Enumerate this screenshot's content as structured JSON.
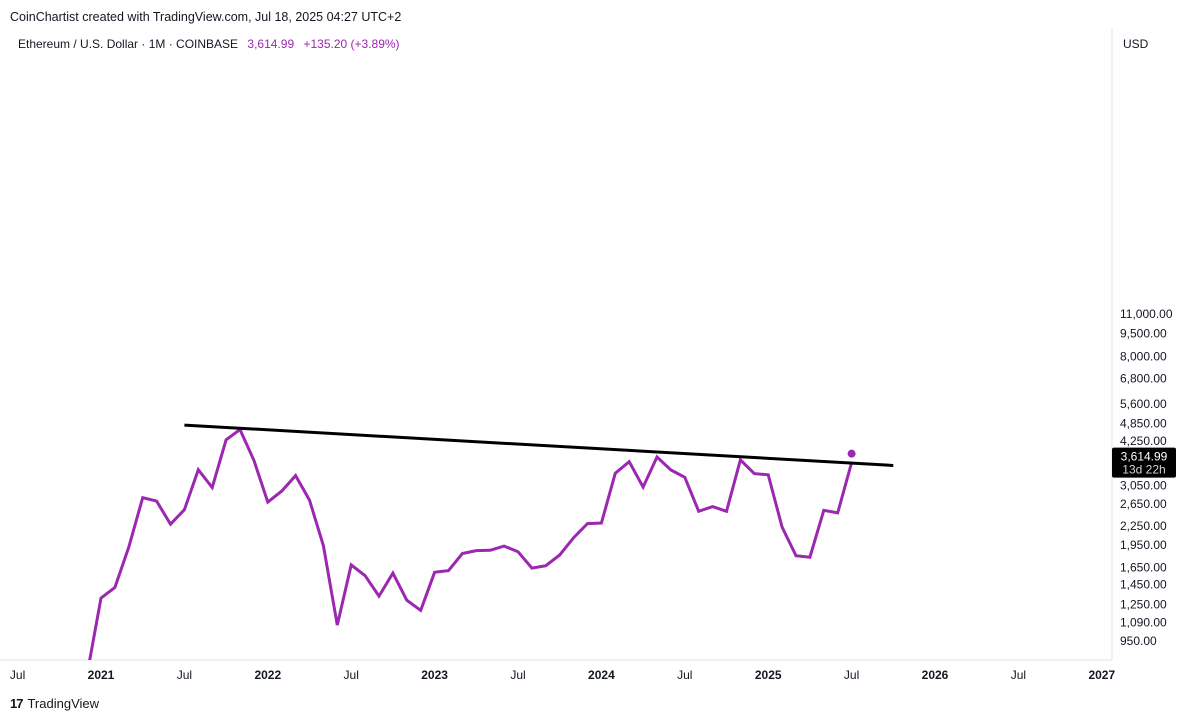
{
  "header": {
    "credit": "CoinChartist created with TradingView.com, Jul 18, 2025 04:27 UTC+2",
    "symbol": "Ethereum / U.S. Dollar · 1M · COINBASE",
    "price": "3,614.99",
    "change": "+135.20 (+3.89%)"
  },
  "price_tag": {
    "price": "3,614.99",
    "countdown": "13d 22h"
  },
  "footer": {
    "brand": "TradingView",
    "logo": "17"
  },
  "colors": {
    "series": "#9c27b0",
    "trendline": "#000000",
    "tag_bg": "#000000"
  },
  "chart_data": {
    "type": "line",
    "y_scale": "log",
    "currency_label": "USD",
    "ylim": [
      880,
      13000
    ],
    "y_ticks": [
      {
        "value": 950,
        "label": "950.00"
      },
      {
        "value": 1090,
        "label": "1,090.00"
      },
      {
        "value": 1250,
        "label": "1,250.00"
      },
      {
        "value": 1450,
        "label": "1,450.00"
      },
      {
        "value": 1650,
        "label": "1,650.00"
      },
      {
        "value": 1950,
        "label": "1,950.00"
      },
      {
        "value": 2250,
        "label": "2,250.00"
      },
      {
        "value": 2650,
        "label": "2,650.00"
      },
      {
        "value": 3050,
        "label": "3,050.00"
      },
      {
        "value": 4250,
        "label": "4,250.00"
      },
      {
        "value": 4850,
        "label": "4,850.00"
      },
      {
        "value": 5600,
        "label": "5,600.00"
      },
      {
        "value": 6800,
        "label": "6,800.00"
      },
      {
        "value": 8000,
        "label": "8,000.00"
      },
      {
        "value": 9500,
        "label": "9,500.00"
      },
      {
        "value": 11000,
        "label": "11,000.00"
      }
    ],
    "x_ticks": [
      {
        "date": "2020-07",
        "label": "Jul",
        "year": false
      },
      {
        "date": "2021-01",
        "label": "2021",
        "year": true
      },
      {
        "date": "2021-07",
        "label": "Jul",
        "year": false
      },
      {
        "date": "2022-01",
        "label": "2022",
        "year": true
      },
      {
        "date": "2022-07",
        "label": "Jul",
        "year": false
      },
      {
        "date": "2023-01",
        "label": "2023",
        "year": true
      },
      {
        "date": "2023-07",
        "label": "Jul",
        "year": false
      },
      {
        "date": "2024-01",
        "label": "2024",
        "year": true
      },
      {
        "date": "2024-07",
        "label": "Jul",
        "year": false
      },
      {
        "date": "2025-01",
        "label": "2025",
        "year": true
      },
      {
        "date": "2025-07",
        "label": "Jul",
        "year": false
      },
      {
        "date": "2026-01",
        "label": "2026",
        "year": true
      },
      {
        "date": "2026-07",
        "label": "Jul",
        "year": false
      },
      {
        "date": "2027-01",
        "label": "2027",
        "year": true
      }
    ],
    "series": [
      {
        "name": "Ethereum / U.S. Dollar",
        "x": [
          "2020-12",
          "2021-01",
          "2021-02",
          "2021-03",
          "2021-04",
          "2021-05",
          "2021-06",
          "2021-07",
          "2021-08",
          "2021-09",
          "2021-10",
          "2021-11",
          "2021-12",
          "2022-01",
          "2022-02",
          "2022-03",
          "2022-04",
          "2022-05",
          "2022-06",
          "2022-07",
          "2022-08",
          "2022-09",
          "2022-10",
          "2022-11",
          "2022-12",
          "2023-01",
          "2023-02",
          "2023-03",
          "2023-04",
          "2023-05",
          "2023-06",
          "2023-07",
          "2023-08",
          "2023-09",
          "2023-10",
          "2023-11",
          "2023-12",
          "2024-01",
          "2024-02",
          "2024-03",
          "2024-04",
          "2024-05",
          "2024-06",
          "2024-07",
          "2024-08",
          "2024-09",
          "2024-10",
          "2024-11",
          "2024-12",
          "2025-01",
          "2025-02",
          "2025-03",
          "2025-04",
          "2025-05",
          "2025-06",
          "2025-07"
        ],
        "values": [
          740,
          1310,
          1420,
          1920,
          2780,
          2710,
          2280,
          2540,
          3430,
          3000,
          4290,
          4630,
          3680,
          2690,
          2920,
          3280,
          2730,
          1940,
          1070,
          1680,
          1550,
          1330,
          1580,
          1290,
          1195,
          1590,
          1610,
          1830,
          1870,
          1875,
          1935,
          1855,
          1640,
          1670,
          1810,
          2060,
          2290,
          2300,
          3340,
          3640,
          3010,
          3770,
          3420,
          3240,
          2510,
          2600,
          2510,
          3690,
          3330,
          3300,
          2230,
          1800,
          1780,
          2530,
          2480,
          3614.99
        ]
      }
    ],
    "trendline": {
      "start": {
        "x": "2021-07",
        "y": 4790
      },
      "end": {
        "x": "2025-10",
        "y": 3540
      }
    },
    "last_value": 3614.99
  }
}
